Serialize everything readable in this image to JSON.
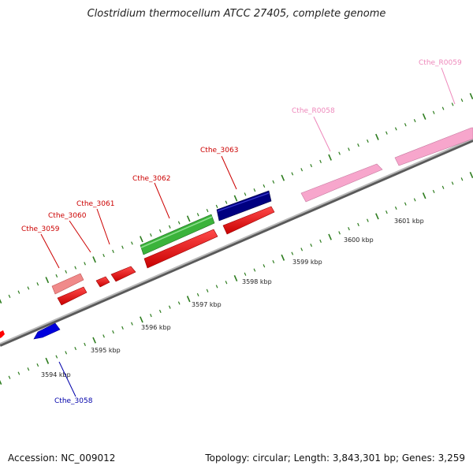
{
  "header": {
    "title": "Clostridium thermocellum ATCC 27405, complete genome"
  },
  "footer": {
    "accession": "Accession: NC_009012",
    "summary": "Topology: circular; Length: 3,843,301 bp; Genes: 3,259"
  },
  "colors": {
    "axis": "#8f8f8f",
    "tick": "#2e7d1f",
    "forward_cds": "#ff0000",
    "forward_cds_light": "#f08080",
    "reverse_cds": "#0000cc",
    "reverse_cds_dark": "#000080",
    "gene": "#33aa33",
    "rna": "#f4a0c8",
    "rna_label": "#ee88bb",
    "cds_label": "#cc0000",
    "reverse_label": "#0000aa"
  },
  "scale": {
    "unit": "kbp",
    "labels": [
      "3594 kbp",
      "3595 kbp",
      "3596 kbp",
      "3597 kbp",
      "3598 kbp",
      "3599 kbp",
      "3600 kbp",
      "3601 kbp"
    ]
  },
  "features": [
    {
      "name": "Cthe_3058",
      "strand": "reverse",
      "color_key": "reverse_cds"
    },
    {
      "name": "Cthe_3059",
      "strand": "forward",
      "color_key": "forward_cds_light"
    },
    {
      "name": "Cthe_3060",
      "strand": "forward",
      "color_key": "forward_cds"
    },
    {
      "name": "Cthe_3061",
      "strand": "forward",
      "color_key": "forward_cds"
    },
    {
      "name": "Cthe_3062",
      "strand": "forward",
      "color_key": "gene"
    },
    {
      "name": "Cthe_3063",
      "strand": "forward",
      "color_key": "reverse_cds_dark"
    },
    {
      "name": "Cthe_R0058",
      "strand": "forward",
      "color_key": "rna"
    },
    {
      "name": "Cthe_R0059",
      "strand": "forward",
      "color_key": "rna"
    }
  ]
}
